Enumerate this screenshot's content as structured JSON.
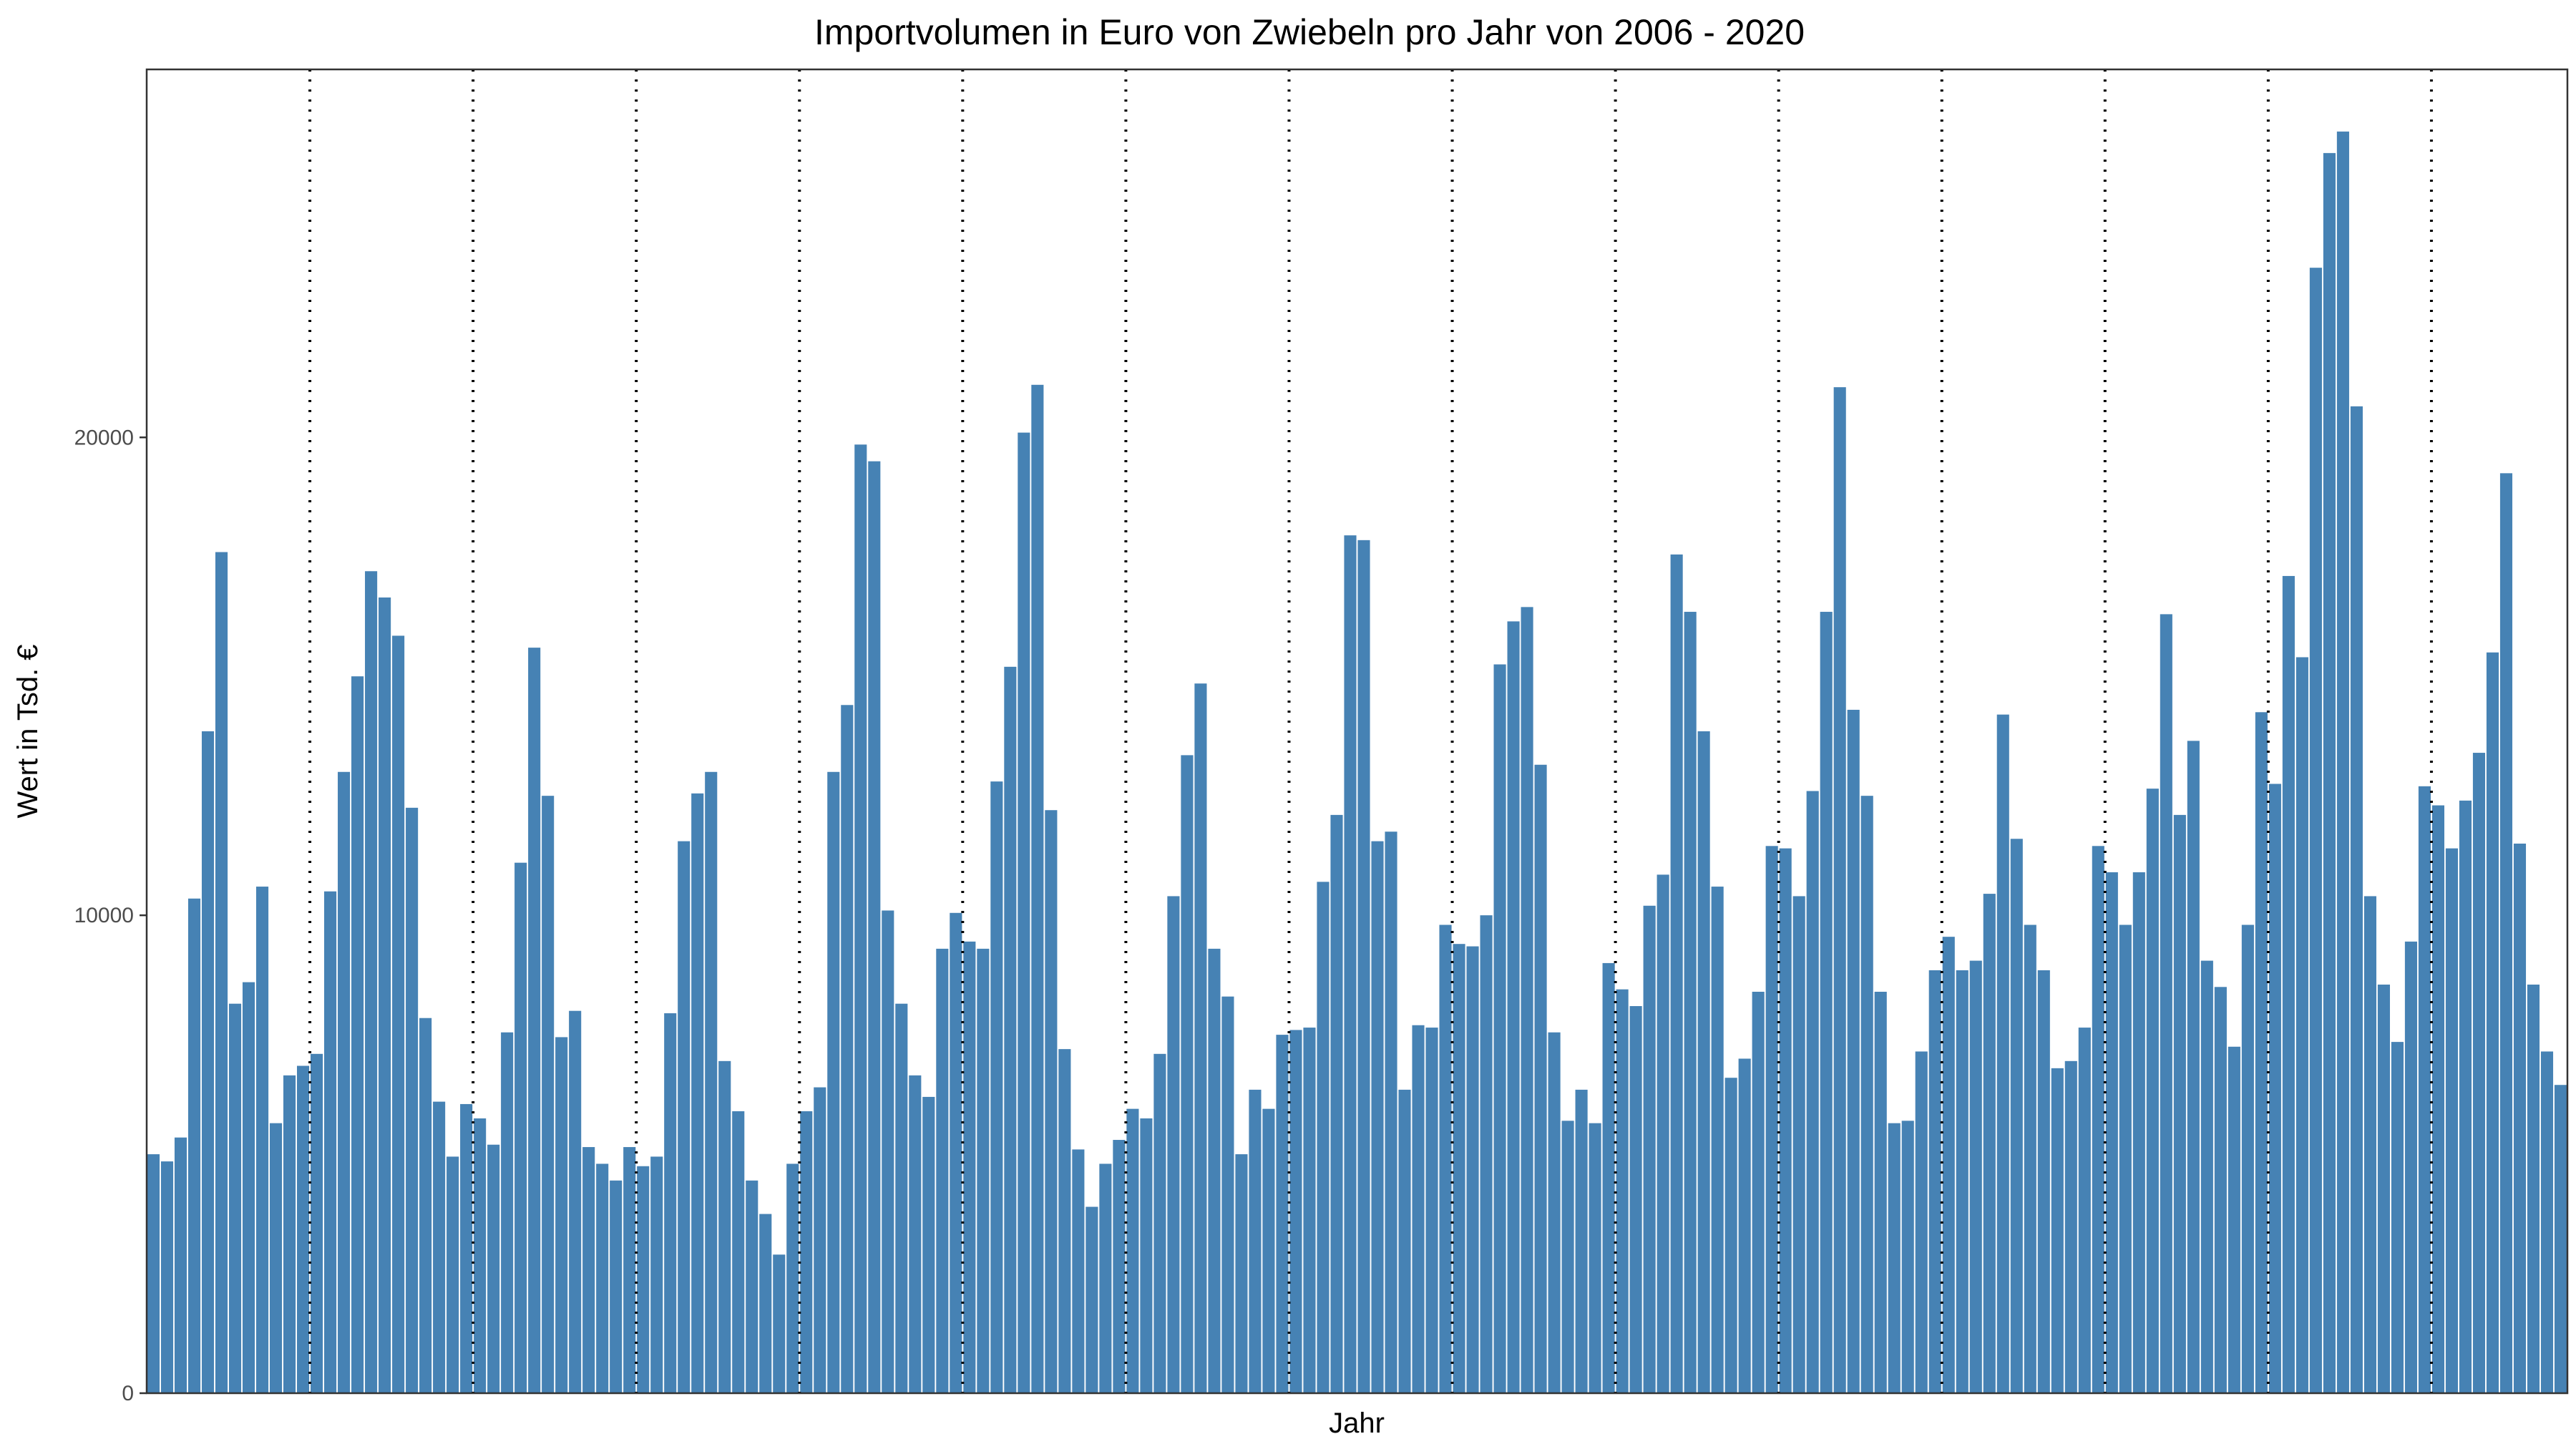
{
  "chart_data": {
    "type": "bar",
    "title": "Importvolumen in Euro von Zwiebeln pro Jahr von 2006 - 2020",
    "xlabel": "Jahr",
    "ylabel": "Wert in Tsd. €",
    "ylim": [
      0,
      27700
    ],
    "yticks": [
      0,
      10000,
      20000
    ],
    "y_tick_labels": [
      "0",
      "10000",
      "20000"
    ],
    "grid": false,
    "legend": "none",
    "bar_color": "#4682B4",
    "year_separator_style": "dotted",
    "year_separators_after_month": [
      12,
      24,
      36,
      48,
      60,
      72,
      84,
      96,
      108,
      120,
      132,
      144,
      156,
      168
    ],
    "values": [
      5000,
      4850,
      5350,
      10350,
      13850,
      17600,
      8150,
      8600,
      10600,
      5650,
      6650,
      6850,
      7100,
      10500,
      13000,
      15000,
      17200,
      16650,
      15850,
      12250,
      7850,
      6100,
      4950,
      6050,
      5750,
      5200,
      7550,
      11100,
      15600,
      12500,
      7450,
      8000,
      5150,
      4800,
      4450,
      5150,
      4750,
      4950,
      7950,
      11550,
      12550,
      13000,
      6950,
      5900,
      4450,
      3750,
      2900,
      4800,
      5900,
      6400,
      13000,
      14400,
      19850,
      19500,
      10100,
      8150,
      6650,
      6200,
      9300,
      10050,
      9450,
      9300,
      12800,
      15200,
      20100,
      21100,
      12200,
      7200,
      5100,
      3900,
      4800,
      5300,
      5950,
      5750,
      7100,
      10400,
      13350,
      14850,
      9300,
      8300,
      5000,
      6350,
      5950,
      7500,
      7600,
      7650,
      10700,
      12100,
      17950,
      17850,
      11550,
      11750,
      6350,
      7700,
      7650,
      9800,
      9400,
      9350,
      10000,
      15250,
      16150,
      16450,
      13150,
      7550,
      5700,
      6350,
      5650,
      9000,
      8450,
      8100,
      10200,
      10850,
      17550,
      16350,
      13850,
      10600,
      6600,
      7000,
      8400,
      11450,
      11400,
      10400,
      12600,
      16350,
      21050,
      14300,
      12500,
      8400,
      5650,
      5700,
      7150,
      8850,
      9550,
      8850,
      9050,
      10450,
      14200,
      11600,
      9800,
      8850,
      6800,
      6950,
      7650,
      11450,
      10900,
      9800,
      10900,
      12650,
      16300,
      12100,
      13650,
      9050,
      8500,
      7250,
      9800,
      14250,
      12750,
      17100,
      15400,
      23550,
      25950,
      26400,
      20650,
      10400,
      8550,
      7350,
      9450,
      12700,
      12300,
      11400,
      12400,
      13400,
      15500,
      19250,
      11500,
      8550,
      7150,
      6450
    ]
  }
}
